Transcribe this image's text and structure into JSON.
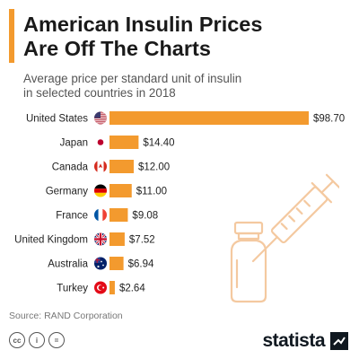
{
  "header": {
    "title_line1": "American Insulin Prices",
    "title_line2": "Are Off The Charts",
    "subtitle_line1": "Average price per standard unit of insulin",
    "subtitle_line2": "in selected countries in 2018"
  },
  "chart_data": {
    "type": "bar",
    "orientation": "horizontal",
    "title": "American Insulin Prices Are Off The Charts",
    "subtitle": "Average price per standard unit of insulin in selected countries in 2018",
    "categories": [
      "United States",
      "Japan",
      "Canada",
      "Germany",
      "France",
      "United Kingdom",
      "Australia",
      "Turkey"
    ],
    "values": [
      98.7,
      14.4,
      12.0,
      11.0,
      9.08,
      7.52,
      6.94,
      2.64
    ],
    "value_labels": [
      "$98.70",
      "$14.40",
      "$12.00",
      "$11.00",
      "$9.08",
      "$7.52",
      "$6.94",
      "$2.64"
    ],
    "flag_icons": [
      "flag-us-icon",
      "flag-japan-icon",
      "flag-canada-icon",
      "flag-germany-icon",
      "flag-france-icon",
      "flag-uk-icon",
      "flag-australia-icon",
      "flag-turkey-icon"
    ],
    "xlim": [
      0,
      98.7
    ],
    "grid": false,
    "legend": "none"
  },
  "colors": {
    "accent": "#f39a2e",
    "illustration": "#f4c9a0",
    "text": "#222222",
    "muted": "#777777",
    "brand": "#101820"
  },
  "source": "Source: RAND Corporation",
  "footer": {
    "brand": "statista",
    "license_icons": [
      "cc-icon",
      "by-icon",
      "nd-icon"
    ],
    "license_glyphs": [
      "cc",
      "i",
      "="
    ]
  },
  "illustration": {
    "icon": "syringe-and-vial-icon"
  }
}
